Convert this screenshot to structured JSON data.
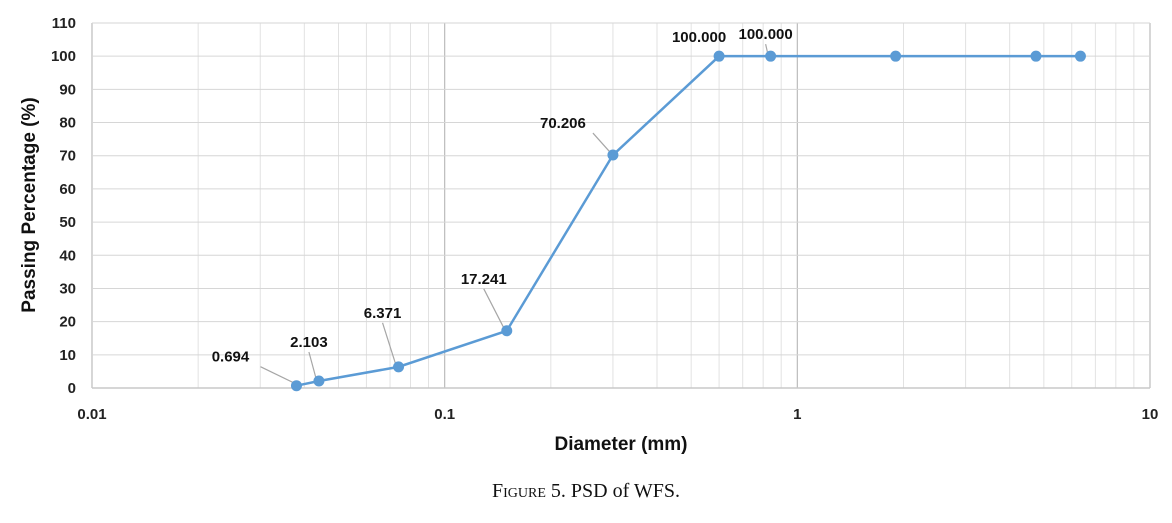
{
  "chart_data": {
    "type": "line",
    "x_scale": "log",
    "xlim": [
      0.01,
      10
    ],
    "ylim": [
      0,
      110
    ],
    "xlabel": "Diameter (mm)",
    "ylabel": "Passing Percentage (%)",
    "x_tick_labels": [
      "0.01",
      "0.1",
      "1",
      "10"
    ],
    "y_tick_labels": [
      "0",
      "10",
      "20",
      "30",
      "40",
      "50",
      "60",
      "70",
      "80",
      "90",
      "100",
      "110"
    ],
    "grid": true,
    "series": [
      {
        "color": "#5b9bd5",
        "points": [
          {
            "x": 0.038,
            "y": 0.694,
            "label": "0.694"
          },
          {
            "x": 0.044,
            "y": 2.103,
            "label": "2.103"
          },
          {
            "x": 0.074,
            "y": 6.371,
            "label": "6.371"
          },
          {
            "x": 0.15,
            "y": 17.241,
            "label": "17.241"
          },
          {
            "x": 0.3,
            "y": 70.206,
            "label": "70.206"
          },
          {
            "x": 0.6,
            "y": 100.0,
            "label": "100.000"
          },
          {
            "x": 0.84,
            "y": 100.0,
            "label": "100.000"
          },
          {
            "x": 1.9,
            "y": 100.0,
            "label": ""
          },
          {
            "x": 4.75,
            "y": 100.0,
            "label": ""
          },
          {
            "x": 6.35,
            "y": 100.0,
            "label": ""
          }
        ]
      }
    ]
  },
  "caption": {
    "figure_word": "Figure",
    "rest": " 5. PSD of WFS."
  }
}
